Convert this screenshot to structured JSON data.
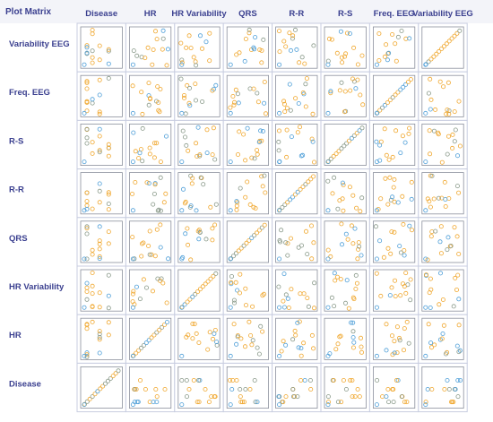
{
  "title": "Plot Matrix",
  "colors": {
    "header_text": "#3a3f8f",
    "orange": "#f0a830",
    "blue": "#4f9fd8",
    "gray": "#8a9a8a",
    "grid": "#c8cde0"
  },
  "chart_data": {
    "type": "scatter",
    "kind": "scatterplot-matrix",
    "variables_columns": [
      "Disease",
      "HR",
      "HR Variability",
      "QRS",
      "R-R",
      "R-S",
      "Freq. EEG",
      "Variability EEG"
    ],
    "variables_rows": [
      "Variability EEG",
      "Freq. EEG",
      "R-S",
      "R-R",
      "QRS",
      "HR Variability",
      "HR",
      "Disease"
    ],
    "diagonal": "identity line of points",
    "axis_range": [
      0,
      1
    ],
    "grid": false,
    "ticks": false
  }
}
